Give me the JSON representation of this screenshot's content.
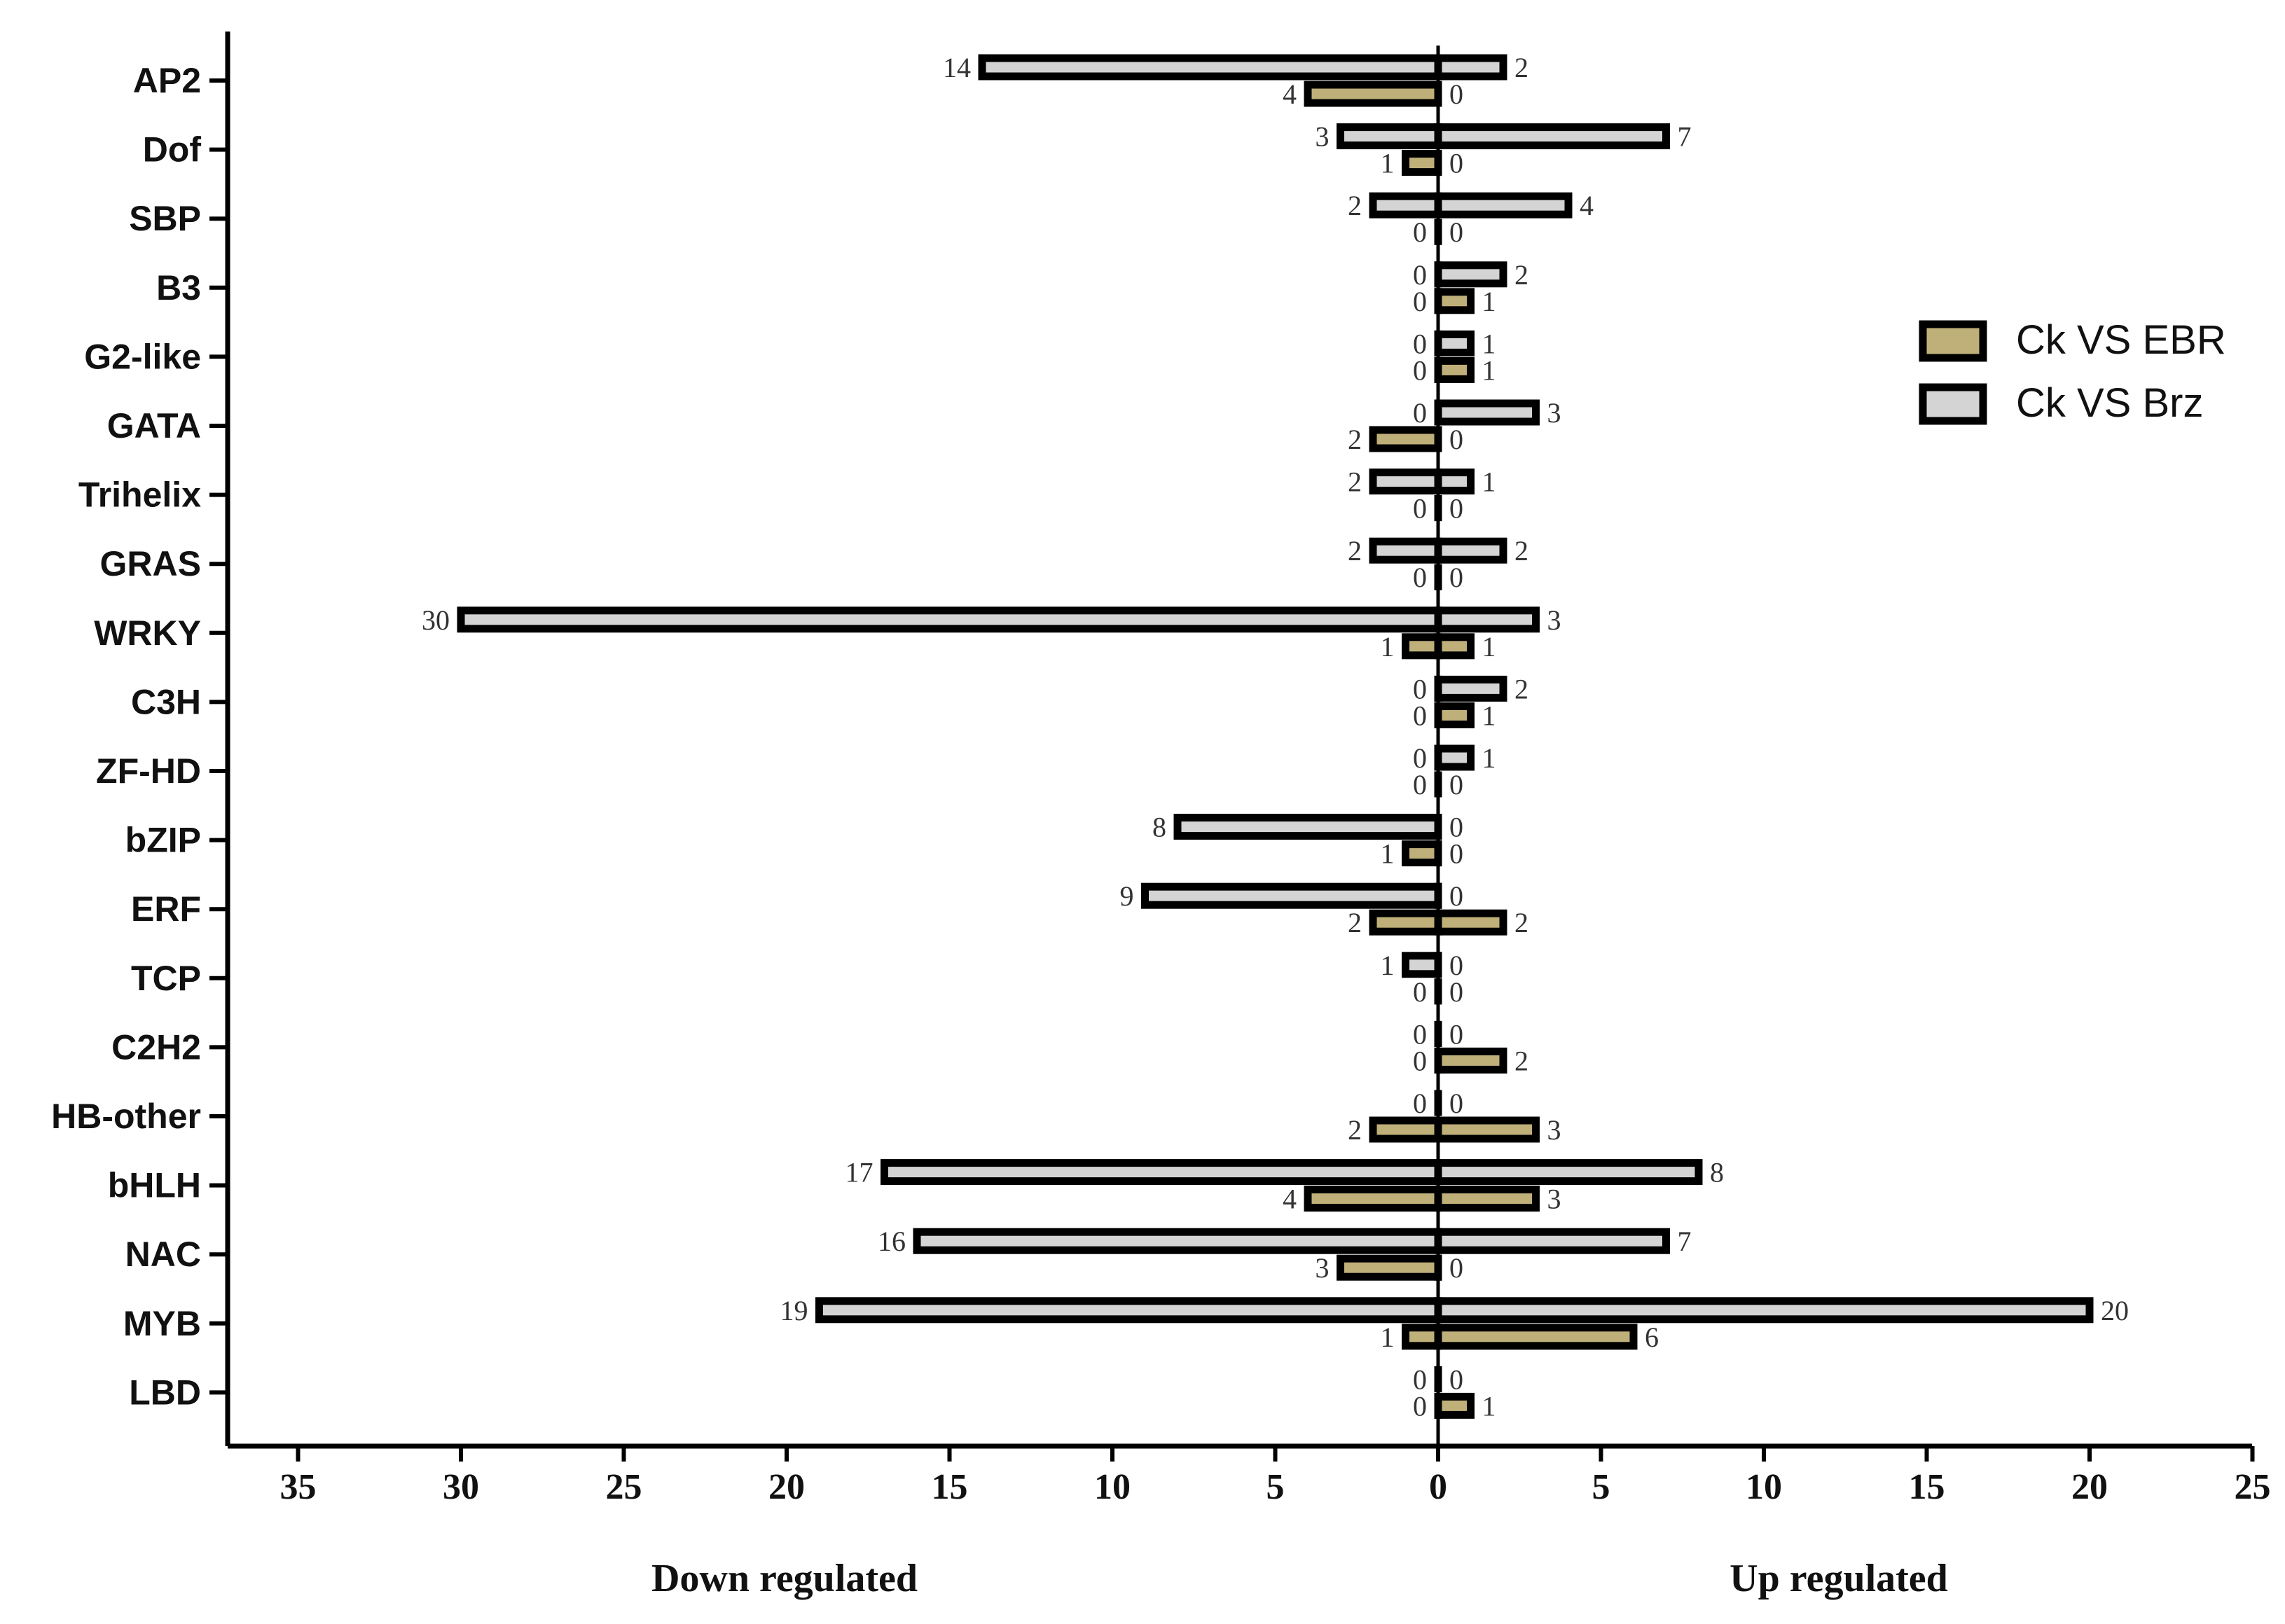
{
  "chart_data": {
    "type": "bar",
    "orientation": "horizontal-diverging",
    "categories": [
      "AP2",
      "Dof",
      "SBP",
      "B3",
      "G2-like",
      "GATA",
      "Trihelix",
      "GRAS",
      "WRKY",
      "C3H",
      "ZF-HD",
      "bZIP",
      "ERF",
      "TCP",
      "C2H2",
      "HB-other",
      "bHLH",
      "NAC",
      "MYB",
      "LBD"
    ],
    "series": [
      {
        "name": "Ck VS Brz",
        "color": "#d4d4d4",
        "down": [
          14,
          3,
          2,
          0,
          0,
          0,
          2,
          2,
          30,
          0,
          0,
          8,
          9,
          1,
          0,
          0,
          17,
          16,
          19,
          0
        ],
        "up": [
          2,
          7,
          4,
          2,
          1,
          3,
          1,
          2,
          3,
          2,
          1,
          0,
          0,
          0,
          0,
          0,
          8,
          7,
          20,
          0
        ]
      },
      {
        "name": "Ck VS EBR",
        "color": "#bfb07a",
        "down": [
          4,
          1,
          0,
          0,
          0,
          2,
          0,
          0,
          1,
          0,
          0,
          1,
          2,
          0,
          0,
          2,
          4,
          3,
          1,
          0
        ],
        "up": [
          0,
          0,
          0,
          1,
          1,
          0,
          0,
          0,
          1,
          1,
          0,
          0,
          2,
          0,
          2,
          3,
          3,
          0,
          6,
          1
        ]
      }
    ],
    "legend": [
      "Ck VS EBR",
      "Ck VS Brz"
    ],
    "legend_position": "right",
    "x_ticks_down": [
      "35",
      "30",
      "25",
      "20",
      "15",
      "10",
      "5",
      "0"
    ],
    "x_ticks_up": [
      "5",
      "10",
      "15",
      "20",
      "25"
    ],
    "xlim_down": [
      0,
      40
    ],
    "xlim_up": [
      0,
      25
    ],
    "xlabel_down": "Down regulated",
    "xlabel_up": "Up regulated"
  }
}
